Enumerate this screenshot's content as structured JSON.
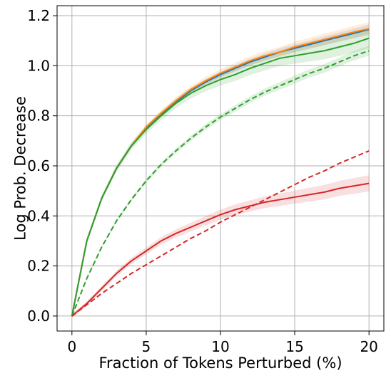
{
  "chart_data": {
    "type": "line",
    "title": "",
    "xlabel": "Fraction of Tokens Perturbed (%)",
    "ylabel": "Log Prob. Decrease",
    "xlim": [
      -1,
      21
    ],
    "ylim": [
      -0.06,
      1.24
    ],
    "grid": true,
    "x_ticks": [
      0,
      5,
      10,
      15,
      20
    ],
    "x_tick_labels": [
      "0",
      "5",
      "10",
      "15",
      "20"
    ],
    "y_ticks": [
      0.0,
      0.2,
      0.4,
      0.6,
      0.8,
      1.0,
      1.2
    ],
    "y_tick_labels": [
      "0.0",
      "0.2",
      "0.4",
      "0.6",
      "0.8",
      "1.0",
      "1.2"
    ],
    "x": [
      0,
      1,
      2,
      3,
      4,
      5,
      6,
      7,
      8,
      9,
      10,
      11,
      12,
      13,
      14,
      15,
      16,
      17,
      18,
      19,
      20
    ],
    "series": [
      {
        "color": "#1f77b4",
        "dash": "solid",
        "band": 0.015,
        "values": [
          0.0,
          0.3,
          0.47,
          0.59,
          0.68,
          0.75,
          0.805,
          0.855,
          0.9,
          0.935,
          0.965,
          0.99,
          1.015,
          1.035,
          1.055,
          1.07,
          1.085,
          1.1,
          1.115,
          1.13,
          1.145
        ]
      },
      {
        "color": "#ff7f0e",
        "dash": "solid",
        "band": 0.02,
        "values": [
          0.0,
          0.3,
          0.47,
          0.59,
          0.68,
          0.755,
          0.81,
          0.86,
          0.905,
          0.94,
          0.97,
          0.995,
          1.02,
          1.04,
          1.055,
          1.075,
          1.09,
          1.105,
          1.12,
          1.135,
          1.148
        ]
      },
      {
        "color": "#2ca02c",
        "dash": "solid",
        "band": 0.03,
        "values": [
          0.0,
          0.3,
          0.47,
          0.59,
          0.68,
          0.745,
          0.8,
          0.85,
          0.89,
          0.92,
          0.945,
          0.965,
          0.99,
          1.01,
          1.03,
          1.04,
          1.05,
          1.06,
          1.075,
          1.09,
          1.11
        ]
      },
      {
        "color": "#2ca02c",
        "dash": "dashed",
        "band": 0.015,
        "values": [
          0.0,
          0.15,
          0.275,
          0.38,
          0.465,
          0.54,
          0.605,
          0.66,
          0.71,
          0.755,
          0.795,
          0.83,
          0.865,
          0.895,
          0.92,
          0.945,
          0.97,
          0.99,
          1.015,
          1.04,
          1.06
        ]
      },
      {
        "color": "#d62728",
        "dash": "solid",
        "band": 0.025,
        "values": [
          0.0,
          0.05,
          0.11,
          0.17,
          0.22,
          0.26,
          0.3,
          0.33,
          0.355,
          0.38,
          0.405,
          0.425,
          0.44,
          0.455,
          0.465,
          0.475,
          0.485,
          0.495,
          0.51,
          0.52,
          0.53
        ]
      },
      {
        "color": "#d62728",
        "dash": "dashed",
        "band": 0.0,
        "values": [
          0.0,
          0.045,
          0.09,
          0.13,
          0.17,
          0.205,
          0.24,
          0.275,
          0.31,
          0.34,
          0.375,
          0.405,
          0.435,
          0.465,
          0.495,
          0.525,
          0.555,
          0.58,
          0.61,
          0.635,
          0.66
        ]
      }
    ]
  }
}
